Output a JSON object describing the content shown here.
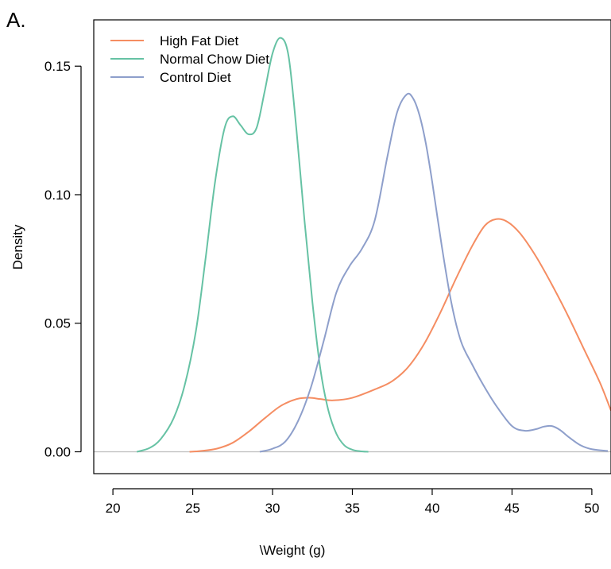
{
  "chart_data": {
    "type": "line",
    "panel_label": "A.",
    "title": "",
    "xlabel": "\\Weight (g)",
    "ylabel": "Density",
    "xlim": [
      18.8,
      51.2
    ],
    "ylim": [
      -0.0085,
      0.168
    ],
    "x_ticks": [
      20,
      25,
      30,
      35,
      40,
      45,
      50
    ],
    "x_tick_labels": [
      "20",
      "25",
      "30",
      "35",
      "40",
      "45",
      "50"
    ],
    "y_ticks": [
      0.0,
      0.05,
      0.1,
      0.15
    ],
    "y_tick_labels": [
      "0.00",
      "0.05",
      "0.10",
      "0.15"
    ],
    "baseline": 0,
    "grid": false,
    "legend": "top-left",
    "series": [
      {
        "name": "High Fat Diet",
        "color": "#f58d62",
        "x": [
          24.8,
          25.5,
          26.5,
          27.5,
          28.5,
          29.5,
          30.5,
          31.5,
          32.3,
          33.0,
          33.8,
          35.0,
          36.5,
          37.5,
          38.5,
          39.5,
          40.5,
          41.5,
          42.5,
          43.3,
          44.0,
          44.7,
          45.5,
          46.5,
          47.5,
          48.5,
          49.5,
          50.5,
          51.2
        ],
        "y": [
          0.0,
          0.0003,
          0.0012,
          0.0035,
          0.0078,
          0.013,
          0.0178,
          0.0205,
          0.021,
          0.0205,
          0.02,
          0.021,
          0.0245,
          0.0275,
          0.033,
          0.042,
          0.054,
          0.0675,
          0.08,
          0.088,
          0.0905,
          0.0895,
          0.085,
          0.076,
          0.065,
          0.053,
          0.04,
          0.027,
          0.016
        ]
      },
      {
        "name": "Normal Chow Diet",
        "color": "#66c2a4",
        "x": [
          21.5,
          22.3,
          23.0,
          23.8,
          24.5,
          25.2,
          25.8,
          26.4,
          27.0,
          27.5,
          28.0,
          28.5,
          29.0,
          29.5,
          30.0,
          30.5,
          31.0,
          31.5,
          32.0,
          32.5,
          33.0,
          33.5,
          34.0,
          34.5,
          35.0,
          35.5,
          36.0
        ],
        "y": [
          0.0,
          0.0015,
          0.005,
          0.013,
          0.026,
          0.047,
          0.075,
          0.105,
          0.126,
          0.1305,
          0.127,
          0.1235,
          0.126,
          0.14,
          0.155,
          0.161,
          0.154,
          0.125,
          0.09,
          0.058,
          0.032,
          0.016,
          0.007,
          0.0025,
          0.0008,
          0.0002,
          0.0
        ]
      },
      {
        "name": "Control Diet",
        "color": "#8e9fcb",
        "x": [
          29.2,
          30.0,
          30.8,
          31.6,
          32.4,
          33.2,
          34.0,
          34.8,
          35.6,
          36.4,
          37.2,
          37.8,
          38.4,
          38.8,
          39.2,
          39.6,
          40.0,
          40.6,
          41.2,
          41.8,
          42.5,
          43.2,
          44.0,
          45.0,
          45.8,
          46.5,
          47.0,
          47.5,
          48.0,
          48.6,
          49.3,
          50.0,
          51.0
        ],
        "y": [
          0.0,
          0.0012,
          0.004,
          0.012,
          0.025,
          0.043,
          0.062,
          0.072,
          0.079,
          0.09,
          0.115,
          0.132,
          0.139,
          0.1375,
          0.131,
          0.12,
          0.105,
          0.08,
          0.058,
          0.043,
          0.034,
          0.026,
          0.018,
          0.01,
          0.0082,
          0.0088,
          0.0098,
          0.01,
          0.0085,
          0.0055,
          0.0025,
          0.001,
          0.0003
        ]
      }
    ]
  }
}
